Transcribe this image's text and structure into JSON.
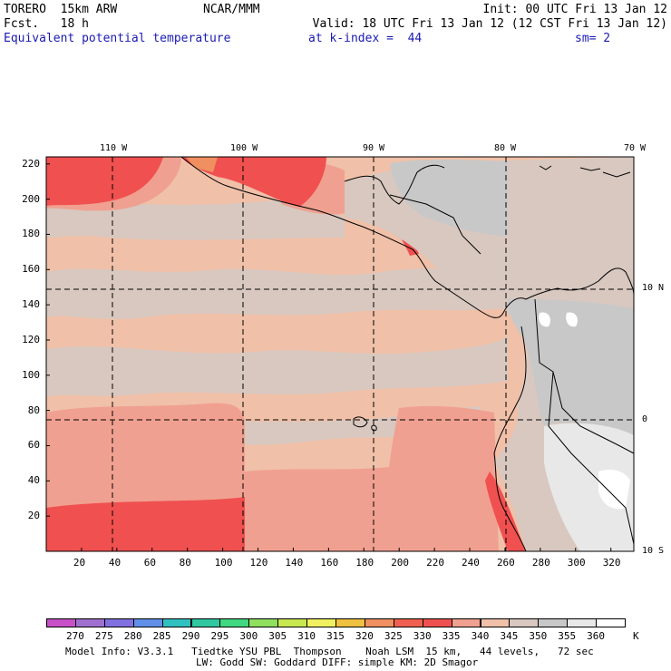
{
  "header": {
    "model": "TORERO  15km ARW",
    "center": "NCAR/MMM",
    "init": "Init: 00 UTC Fri 13 Jan 12",
    "fcst": "Fcst.   18 h",
    "valid": "Valid: 18 UTC Fri 13 Jan 12 (12 CST Fri 13 Jan 12)",
    "field": "Equivalent potential temperature",
    "level": "at k-index =  44",
    "smooth": "sm= 2"
  },
  "map": {
    "lon_labels": [
      "110 W",
      "100 W",
      "90 W",
      "80 W",
      "70 W"
    ],
    "lat_labels": [
      "10 N",
      "0",
      "10 S"
    ],
    "x_ticks": [
      "20",
      "40",
      "60",
      "80",
      "100",
      "120",
      "140",
      "160",
      "180",
      "200",
      "220",
      "240",
      "260",
      "280",
      "300",
      "320"
    ],
    "y_ticks": [
      "220",
      "200",
      "180",
      "160",
      "140",
      "120",
      "100",
      "80",
      "60",
      "40",
      "20"
    ]
  },
  "colorbar": {
    "labels": [
      "270",
      "275",
      "280",
      "285",
      "290",
      "295",
      "300",
      "305",
      "310",
      "315",
      "320",
      "325",
      "330",
      "335",
      "340",
      "345",
      "350",
      "355",
      "360"
    ],
    "unit": "K",
    "colors": [
      "#c850c8",
      "#a070d0",
      "#8070e0",
      "#6090e8",
      "#30c0c0",
      "#30c8a0",
      "#40d880",
      "#90e060",
      "#c8e850",
      "#f0f060",
      "#f0c040",
      "#f09060",
      "#f06050",
      "#f05050",
      "#f0a090",
      "#f0c0a8",
      "#d8c8c0",
      "#c8c8c8",
      "#e8e8e8",
      "#ffffff"
    ]
  },
  "footer": {
    "line1": "Model Info: V3.3.1   Tiedtke YSU PBL  Thompson    Noah LSM  15 km,   44 levels,   72 sec",
    "line2": "LW: Godd SW: Goddard DIFF: simple KM: 2D Smagor"
  }
}
